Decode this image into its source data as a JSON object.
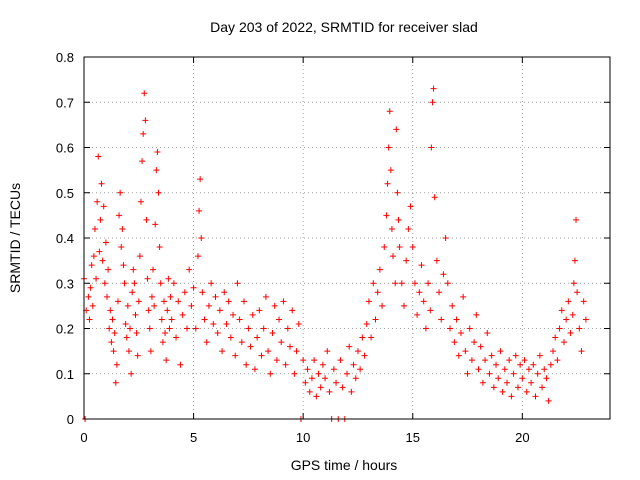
{
  "chart_data": {
    "type": "scatter",
    "title": "Day 203 of 2022, SRMTID for receiver slad",
    "xlabel": "GPS time / hours",
    "ylabel": "SRMTID / TECUs",
    "xlim": [
      0,
      24
    ],
    "ylim": [
      0,
      0.8
    ],
    "x_ticks": [
      0,
      5,
      10,
      15,
      20
    ],
    "y_ticks": [
      0,
      0.1,
      0.2,
      0.3,
      0.4,
      0.5,
      0.6,
      0.7,
      0.8
    ],
    "x_tick_labels": [
      "0",
      "5",
      "10",
      "15",
      "20"
    ],
    "y_tick_labels": [
      "0",
      "0.1",
      "0.2",
      "0.3",
      "0.4",
      "0.5",
      "0.6",
      "0.7",
      "0.8"
    ],
    "grid": true,
    "marker": "+",
    "color": "#ff0000",
    "series": [
      {
        "name": "SRMTID",
        "points": [
          [
            0.0,
            0.31
          ],
          [
            0.05,
            0.0
          ],
          [
            0.1,
            0.24
          ],
          [
            0.2,
            0.27
          ],
          [
            0.25,
            0.22
          ],
          [
            0.3,
            0.29
          ],
          [
            0.35,
            0.34
          ],
          [
            0.4,
            0.25
          ],
          [
            0.45,
            0.36
          ],
          [
            0.5,
            0.42
          ],
          [
            0.55,
            0.31
          ],
          [
            0.6,
            0.48
          ],
          [
            0.65,
            0.58
          ],
          [
            0.7,
            0.37
          ],
          [
            0.75,
            0.44
          ],
          [
            0.8,
            0.52
          ],
          [
            0.85,
            0.35
          ],
          [
            0.9,
            0.47
          ],
          [
            0.95,
            0.3
          ],
          [
            1.0,
            0.39
          ],
          [
            1.05,
            0.27
          ],
          [
            1.1,
            0.33
          ],
          [
            1.15,
            0.2
          ],
          [
            1.2,
            0.24
          ],
          [
            1.25,
            0.17
          ],
          [
            1.3,
            0.22
          ],
          [
            1.35,
            0.15
          ],
          [
            1.4,
            0.19
          ],
          [
            1.45,
            0.08
          ],
          [
            1.5,
            0.12
          ],
          [
            1.55,
            0.26
          ],
          [
            1.6,
            0.45
          ],
          [
            1.65,
            0.5
          ],
          [
            1.7,
            0.38
          ],
          [
            1.75,
            0.42
          ],
          [
            1.8,
            0.34
          ],
          [
            1.85,
            0.3
          ],
          [
            1.9,
            0.21
          ],
          [
            1.95,
            0.18
          ],
          [
            2.0,
            0.25
          ],
          [
            2.05,
            0.15
          ],
          [
            2.1,
            0.2
          ],
          [
            2.15,
            0.1
          ],
          [
            2.2,
            0.28
          ],
          [
            2.25,
            0.33
          ],
          [
            2.3,
            0.3
          ],
          [
            2.35,
            0.23
          ],
          [
            2.4,
            0.19
          ],
          [
            2.45,
            0.14
          ],
          [
            2.5,
            0.26
          ],
          [
            2.55,
            0.36
          ],
          [
            2.6,
            0.48
          ],
          [
            2.65,
            0.57
          ],
          [
            2.7,
            0.63
          ],
          [
            2.75,
            0.72
          ],
          [
            2.8,
            0.66
          ],
          [
            2.85,
            0.44
          ],
          [
            2.9,
            0.31
          ],
          [
            2.95,
            0.24
          ],
          [
            3.0,
            0.2
          ],
          [
            3.05,
            0.15
          ],
          [
            3.1,
            0.27
          ],
          [
            3.15,
            0.33
          ],
          [
            3.2,
            0.25
          ],
          [
            3.25,
            0.43
          ],
          [
            3.3,
            0.55
          ],
          [
            3.35,
            0.59
          ],
          [
            3.4,
            0.5
          ],
          [
            3.45,
            0.38
          ],
          [
            3.5,
            0.3
          ],
          [
            3.55,
            0.22
          ],
          [
            3.6,
            0.17
          ],
          [
            3.65,
            0.26
          ],
          [
            3.7,
            0.19
          ],
          [
            3.75,
            0.13
          ],
          [
            3.8,
            0.24
          ],
          [
            3.85,
            0.31
          ],
          [
            3.9,
            0.2
          ],
          [
            3.95,
            0.27
          ],
          [
            4.0,
            0.22
          ],
          [
            4.1,
            0.3
          ],
          [
            4.2,
            0.18
          ],
          [
            4.3,
            0.26
          ],
          [
            4.4,
            0.12
          ],
          [
            4.5,
            0.23
          ],
          [
            4.6,
            0.28
          ],
          [
            4.7,
            0.2
          ],
          [
            4.8,
            0.33
          ],
          [
            4.9,
            0.25
          ],
          [
            5.0,
            0.29
          ],
          [
            5.1,
            0.2
          ],
          [
            5.2,
            0.36
          ],
          [
            5.25,
            0.46
          ],
          [
            5.3,
            0.53
          ],
          [
            5.35,
            0.4
          ],
          [
            5.4,
            0.28
          ],
          [
            5.5,
            0.22
          ],
          [
            5.6,
            0.17
          ],
          [
            5.7,
            0.25
          ],
          [
            5.8,
            0.3
          ],
          [
            5.9,
            0.21
          ],
          [
            6.0,
            0.27
          ],
          [
            6.1,
            0.19
          ],
          [
            6.2,
            0.24
          ],
          [
            6.3,
            0.15
          ],
          [
            6.4,
            0.28
          ],
          [
            6.5,
            0.21
          ],
          [
            6.6,
            0.26
          ],
          [
            6.7,
            0.18
          ],
          [
            6.8,
            0.23
          ],
          [
            6.9,
            0.14
          ],
          [
            7.0,
            0.3
          ],
          [
            7.1,
            0.22
          ],
          [
            7.2,
            0.17
          ],
          [
            7.3,
            0.26
          ],
          [
            7.4,
            0.12
          ],
          [
            7.5,
            0.2
          ],
          [
            7.6,
            0.16
          ],
          [
            7.7,
            0.23
          ],
          [
            7.8,
            0.11
          ],
          [
            7.9,
            0.18
          ],
          [
            8.0,
            0.24
          ],
          [
            8.1,
            0.14
          ],
          [
            8.2,
            0.2
          ],
          [
            8.3,
            0.27
          ],
          [
            8.4,
            0.15
          ],
          [
            8.5,
            0.1
          ],
          [
            8.6,
            0.19
          ],
          [
            8.7,
            0.25
          ],
          [
            8.8,
            0.13
          ],
          [
            8.9,
            0.22
          ],
          [
            9.0,
            0.17
          ],
          [
            9.1,
            0.26
          ],
          [
            9.2,
            0.12
          ],
          [
            9.3,
            0.2
          ],
          [
            9.4,
            0.16
          ],
          [
            9.5,
            0.24
          ],
          [
            9.6,
            0.1
          ],
          [
            9.7,
            0.15
          ],
          [
            9.8,
            0.21
          ],
          [
            9.9,
            0.0
          ],
          [
            10.0,
            0.13
          ],
          [
            10.1,
            0.08
          ],
          [
            10.2,
            0.11
          ],
          [
            10.3,
            0.06
          ],
          [
            10.4,
            0.09
          ],
          [
            10.5,
            0.13
          ],
          [
            10.6,
            0.05
          ],
          [
            10.7,
            0.1
          ],
          [
            10.8,
            0.07
          ],
          [
            10.9,
            0.12
          ],
          [
            11.0,
            0.09
          ],
          [
            11.1,
            0.15
          ],
          [
            11.2,
            0.06
          ],
          [
            11.3,
            0.0
          ],
          [
            11.4,
            0.11
          ],
          [
            11.5,
            0.08
          ],
          [
            11.6,
            0.0
          ],
          [
            11.7,
            0.13
          ],
          [
            11.8,
            0.07
          ],
          [
            11.9,
            0.0
          ],
          [
            12.0,
            0.1
          ],
          [
            12.1,
            0.16
          ],
          [
            12.2,
            0.06
          ],
          [
            12.3,
            0.12
          ],
          [
            12.4,
            0.09
          ],
          [
            12.5,
            0.15
          ],
          [
            12.6,
            0.11
          ],
          [
            12.7,
            0.18
          ],
          [
            12.8,
            0.14
          ],
          [
            12.9,
            0.21
          ],
          [
            13.0,
            0.26
          ],
          [
            13.1,
            0.18
          ],
          [
            13.2,
            0.3
          ],
          [
            13.3,
            0.22
          ],
          [
            13.4,
            0.28
          ],
          [
            13.5,
            0.33
          ],
          [
            13.6,
            0.25
          ],
          [
            13.7,
            0.38
          ],
          [
            13.8,
            0.45
          ],
          [
            13.85,
            0.52
          ],
          [
            13.9,
            0.6
          ],
          [
            13.95,
            0.68
          ],
          [
            14.0,
            0.55
          ],
          [
            14.05,
            0.42
          ],
          [
            14.1,
            0.36
          ],
          [
            14.2,
            0.3
          ],
          [
            14.25,
            0.64
          ],
          [
            14.3,
            0.5
          ],
          [
            14.35,
            0.44
          ],
          [
            14.4,
            0.38
          ],
          [
            14.5,
            0.3
          ],
          [
            14.6,
            0.25
          ],
          [
            14.7,
            0.35
          ],
          [
            14.8,
            0.42
          ],
          [
            14.9,
            0.47
          ],
          [
            15.0,
            0.38
          ],
          [
            15.1,
            0.3
          ],
          [
            15.2,
            0.23
          ],
          [
            15.3,
            0.28
          ],
          [
            15.4,
            0.34
          ],
          [
            15.5,
            0.26
          ],
          [
            15.6,
            0.2
          ],
          [
            15.7,
            0.3
          ],
          [
            15.8,
            0.24
          ],
          [
            15.85,
            0.6
          ],
          [
            15.9,
            0.7
          ],
          [
            15.95,
            0.73
          ],
          [
            16.0,
            0.49
          ],
          [
            16.1,
            0.35
          ],
          [
            16.2,
            0.28
          ],
          [
            16.3,
            0.22
          ],
          [
            16.4,
            0.32
          ],
          [
            16.5,
            0.4
          ],
          [
            16.6,
            0.3
          ],
          [
            16.7,
            0.2
          ],
          [
            16.8,
            0.25
          ],
          [
            16.9,
            0.17
          ],
          [
            17.0,
            0.22
          ],
          [
            17.1,
            0.14
          ],
          [
            17.2,
            0.19
          ],
          [
            17.3,
            0.27
          ],
          [
            17.4,
            0.15
          ],
          [
            17.5,
            0.1
          ],
          [
            17.6,
            0.2
          ],
          [
            17.7,
            0.13
          ],
          [
            17.8,
            0.17
          ],
          [
            17.9,
            0.23
          ],
          [
            18.0,
            0.11
          ],
          [
            18.1,
            0.16
          ],
          [
            18.2,
            0.08
          ],
          [
            18.3,
            0.13
          ],
          [
            18.4,
            0.19
          ],
          [
            18.5,
            0.1
          ],
          [
            18.6,
            0.14
          ],
          [
            18.7,
            0.07
          ],
          [
            18.8,
            0.12
          ],
          [
            18.9,
            0.09
          ],
          [
            19.0,
            0.15
          ],
          [
            19.1,
            0.06
          ],
          [
            19.2,
            0.11
          ],
          [
            19.3,
            0.08
          ],
          [
            19.4,
            0.13
          ],
          [
            19.5,
            0.05
          ],
          [
            19.6,
            0.1
          ],
          [
            19.7,
            0.14
          ],
          [
            19.8,
            0.07
          ],
          [
            19.9,
            0.12
          ],
          [
            20.0,
            0.09
          ],
          [
            20.1,
            0.13
          ],
          [
            20.2,
            0.06
          ],
          [
            20.3,
            0.11
          ],
          [
            20.4,
            0.08
          ],
          [
            20.5,
            0.12
          ],
          [
            20.6,
            0.05
          ],
          [
            20.7,
            0.1
          ],
          [
            20.8,
            0.14
          ],
          [
            20.9,
            0.07
          ],
          [
            21.0,
            0.11
          ],
          [
            21.1,
            0.09
          ],
          [
            21.2,
            0.04
          ],
          [
            21.3,
            0.12
          ],
          [
            21.4,
            0.15
          ],
          [
            21.5,
            0.18
          ],
          [
            21.6,
            0.13
          ],
          [
            21.7,
            0.2
          ],
          [
            21.8,
            0.24
          ],
          [
            21.9,
            0.17
          ],
          [
            22.0,
            0.22
          ],
          [
            22.1,
            0.26
          ],
          [
            22.2,
            0.19
          ],
          [
            22.3,
            0.23
          ],
          [
            22.35,
            0.3
          ],
          [
            22.4,
            0.35
          ],
          [
            22.45,
            0.44
          ],
          [
            22.5,
            0.28
          ],
          [
            22.6,
            0.2
          ],
          [
            22.7,
            0.15
          ],
          [
            22.8,
            0.26
          ],
          [
            22.9,
            0.22
          ]
        ]
      }
    ]
  }
}
